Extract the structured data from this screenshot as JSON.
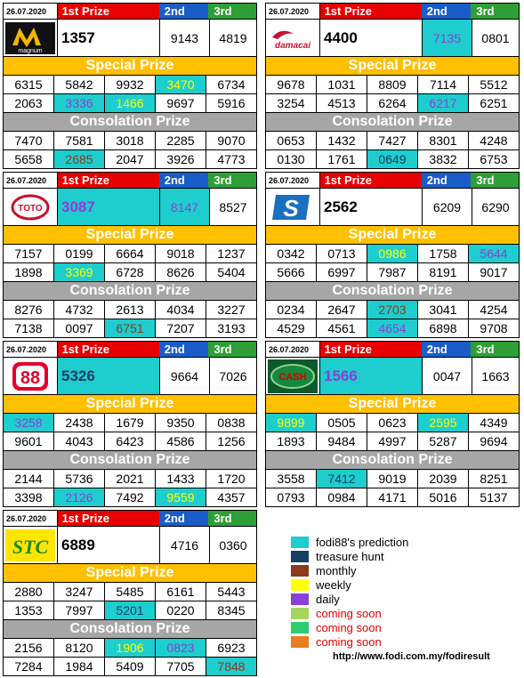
{
  "headers": {
    "date": "26.07.2020",
    "first": "1st Prize",
    "second": "2nd",
    "third": "3rd",
    "special": "Special Prize",
    "consolation": "Consolation Prize"
  },
  "cards": {
    "magnum": {
      "logo": "magnum",
      "p1": "1357",
      "p2": "9143",
      "p3": "4819",
      "special": [
        [
          "6315",
          "5842",
          "9932",
          "3470",
          "6734"
        ],
        [
          "2063",
          "3336",
          "1466",
          "9697",
          "5916"
        ]
      ],
      "cons": [
        [
          "7470",
          "7581",
          "3018",
          "2285",
          "9070"
        ],
        [
          "5658",
          "2685",
          "2047",
          "3926",
          "4773"
        ]
      ]
    },
    "damacai": {
      "logo": "damacai",
      "p1": "4400",
      "p2": "7135",
      "p3": "0801",
      "special": [
        [
          "9678",
          "1031",
          "8809",
          "7114",
          "5512"
        ],
        [
          "3254",
          "4513",
          "6264",
          "6217",
          "6251"
        ]
      ],
      "cons": [
        [
          "0653",
          "1432",
          "7427",
          "8301",
          "4248"
        ],
        [
          "0130",
          "1761",
          "0649",
          "3832",
          "6753"
        ]
      ]
    },
    "toto": {
      "logo": "TOTO",
      "p1": "3087",
      "p2": "8147",
      "p3": "8527",
      "special": [
        [
          "7157",
          "0199",
          "6664",
          "9018",
          "1237"
        ],
        [
          "1898",
          "3369",
          "6728",
          "8626",
          "5404"
        ]
      ],
      "cons": [
        [
          "8276",
          "4732",
          "2613",
          "4034",
          "3227"
        ],
        [
          "7138",
          "0097",
          "6751",
          "7207",
          "3193"
        ]
      ]
    },
    "singapore": {
      "logo": "S",
      "p1": "2562",
      "p2": "6209",
      "p3": "6290",
      "special": [
        [
          "0342",
          "0713",
          "0986",
          "1758",
          "5644"
        ],
        [
          "5666",
          "6997",
          "7987",
          "8191",
          "9017"
        ]
      ],
      "cons": [
        [
          "0234",
          "2647",
          "2703",
          "3041",
          "4254"
        ],
        [
          "4529",
          "4561",
          "4654",
          "6898",
          "9708"
        ]
      ]
    },
    "sabah88": {
      "logo": "88",
      "p1": "5326",
      "p2": "9664",
      "p3": "7026",
      "special": [
        [
          "3258",
          "2438",
          "1679",
          "9350",
          "0838"
        ],
        [
          "9601",
          "4043",
          "6423",
          "4586",
          "1256"
        ]
      ],
      "cons": [
        [
          "2144",
          "5736",
          "2021",
          "1433",
          "1720"
        ],
        [
          "3398",
          "2126",
          "7492",
          "9559",
          "4357"
        ]
      ]
    },
    "cash": {
      "logo": "CASH",
      "p1": "1566",
      "p2": "0047",
      "p3": "1663",
      "special": [
        [
          "9899",
          "0505",
          "0623",
          "2595",
          "4349"
        ],
        [
          "1893",
          "9484",
          "4997",
          "5287",
          "9694"
        ]
      ],
      "cons": [
        [
          "3558",
          "7412",
          "9019",
          "2039",
          "8251"
        ],
        [
          "0793",
          "0984",
          "4171",
          "5016",
          "5137"
        ]
      ]
    },
    "stc": {
      "logo": "STC",
      "p1": "6889",
      "p2": "4716",
      "p3": "0360",
      "special": [
        [
          "2880",
          "3247",
          "5485",
          "6161",
          "5443"
        ],
        [
          "1353",
          "7997",
          "5201",
          "0220",
          "8345"
        ]
      ],
      "cons": [
        [
          "2156",
          "8120",
          "1906",
          "0823",
          "6923"
        ],
        [
          "7284",
          "1984",
          "5409",
          "7705",
          "7848"
        ]
      ]
    }
  },
  "legend": [
    {
      "color": "#1ecdcd",
      "label": "fodi88's prediction"
    },
    {
      "color": "#153f66",
      "label": "treasure hunt"
    },
    {
      "color": "#8b3a1c",
      "label": "monthly"
    },
    {
      "color": "#ffff00",
      "label": "weekly"
    },
    {
      "color": "#8a3fd6",
      "label": "daily"
    },
    {
      "color": "#a4d65e",
      "label": "coming soon"
    },
    {
      "color": "#2ecc71",
      "label": "coming soon"
    },
    {
      "color": "#e67e22",
      "label": "coming soon"
    }
  ],
  "url": "http://www.fodi.com.my/fodiresult"
}
